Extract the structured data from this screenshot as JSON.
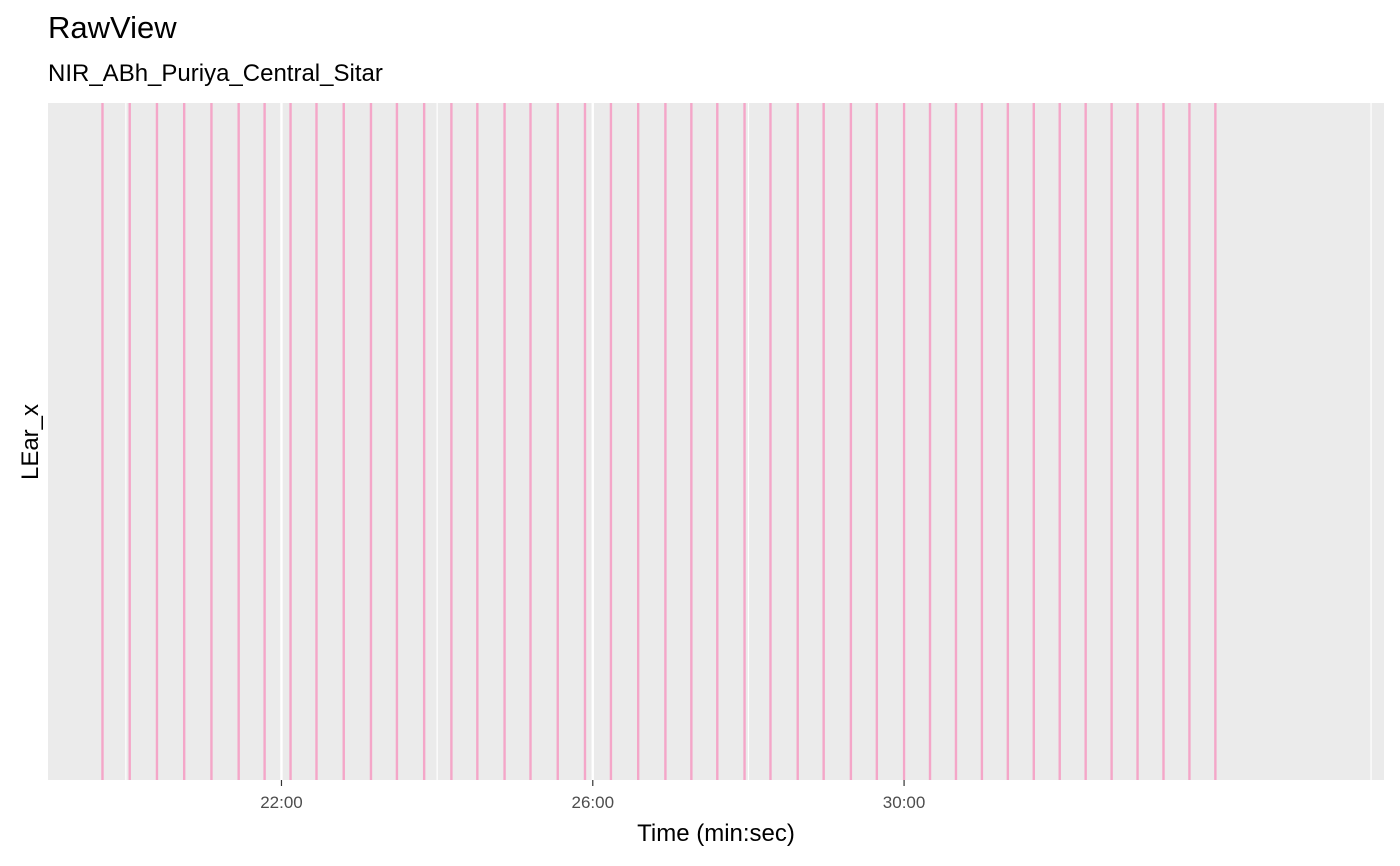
{
  "chart_data": {
    "type": "line",
    "title": "RawView",
    "subtitle": "NIR_ABh_Puriya_Central_Sitar",
    "xlabel": "Time (min:sec)",
    "ylabel": "LEar_x",
    "x_unit": "seconds",
    "xlim": [
      1140,
      2170
    ],
    "x_ticks": [
      {
        "value": 1320,
        "label": "22:00"
      },
      {
        "value": 1560,
        "label": "26:00"
      },
      {
        "value": 1800,
        "label": "30:00"
      }
    ],
    "x_minor_gridlines": [
      1200,
      1440,
      1680,
      1920,
      2160
    ],
    "grid": true,
    "series": [
      {
        "color": "#f4a6c8",
        "style": "vertical-lines",
        "x": [
          1182,
          1203,
          1224,
          1245,
          1266,
          1287,
          1307,
          1327,
          1347,
          1368,
          1389,
          1409,
          1430,
          1451,
          1471,
          1492,
          1512,
          1533,
          1554,
          1574,
          1595,
          1616,
          1636,
          1656,
          1677,
          1697,
          1718,
          1738,
          1759,
          1779,
          1800,
          1820,
          1840,
          1860,
          1880,
          1900,
          1920,
          1940,
          1960,
          1980,
          2000,
          2020,
          2040
        ]
      }
    ],
    "colors": {
      "panel": "#ebebeb",
      "grid_major": "#ffffff",
      "grid_minor": "#ffffff",
      "tick_label": "#4d4d4d",
      "tick_mark": "#333333"
    }
  }
}
